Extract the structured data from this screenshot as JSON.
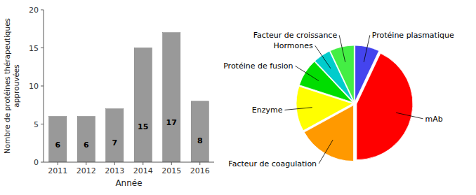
{
  "chart_data": [
    {
      "type": "bar",
      "categories": [
        "2011",
        "2012",
        "2013",
        "2014",
        "2015",
        "2016"
      ],
      "values": [
        6,
        6,
        7,
        15,
        17,
        8
      ],
      "color": "#999999",
      "xlabel": "Année",
      "ylabel": "Nombre de protéines thérapeutiques\napprouvées",
      "ylim": [
        0,
        20
      ],
      "yticks": [
        0,
        5,
        10,
        15,
        20
      ],
      "grid": false,
      "data_labels": true
    },
    {
      "type": "pie",
      "categories": [
        "Protéine plasmatique",
        "mAb",
        "Facteur de coagulation",
        "Enzyme",
        "Protéine de fusion",
        "Hormones",
        "Facteur de croissance"
      ],
      "values": [
        7,
        43,
        17,
        13,
        8,
        5,
        7
      ],
      "colors": [
        "#4444ee",
        "#ff0000",
        "#ff9900",
        "#ffff00",
        "#00dd00",
        "#00cccc",
        "#44ee44"
      ]
    }
  ]
}
